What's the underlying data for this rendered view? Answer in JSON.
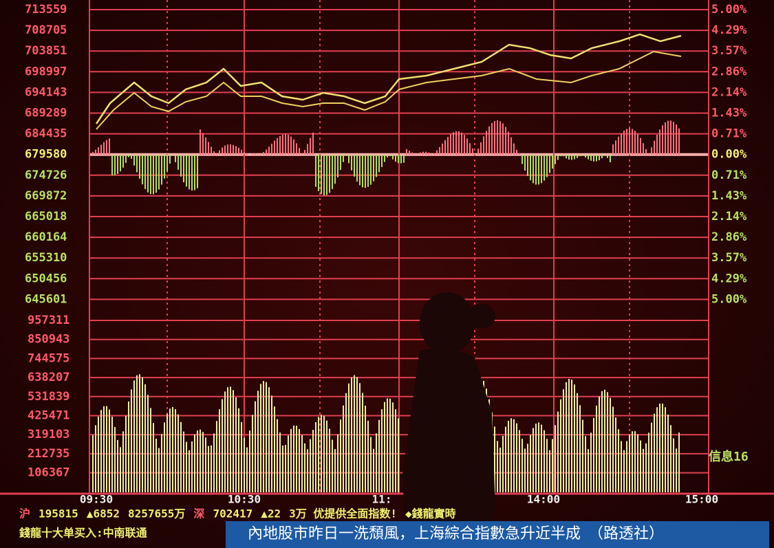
{
  "left_axis_labels": [
    "713559",
    "708705",
    "703851",
    "698997",
    "694143",
    "689289",
    "684435",
    "679580",
    "674726",
    "669872",
    "665018",
    "660164",
    "655310",
    "650456",
    "645601"
  ],
  "volume_axis_labels": [
    "957311",
    "850943",
    "744575",
    "638207",
    "531839",
    "425471",
    "319103",
    "212735",
    "106367"
  ],
  "right_axis_labels": [
    "5.00%",
    "4.29%",
    "3.57%",
    "2.86%",
    "2.14%",
    "1.43%",
    "0.71%",
    "0.00%",
    "0.71%",
    "1.43%",
    "2.14%",
    "2.86%",
    "3.57%",
    "4.29%",
    "5.00%"
  ],
  "time_labels": [
    "09:30",
    "10:30",
    "11:",
    "14:00",
    "15:00"
  ],
  "side_label": "信息16",
  "ticker_line_1": [
    "沪",
    "195815",
    "▲6852",
    "8257655万",
    "深",
    "702417",
    "▲22",
    "3万 优提供全面指数!",
    "◆錢龍實時"
  ],
  "ticker_line_2": "錢龍十大单买入:中南联通",
  "caption": "內地股市昨日一洗頹風，上海綜合指數急升近半成　（路透社）"
}
